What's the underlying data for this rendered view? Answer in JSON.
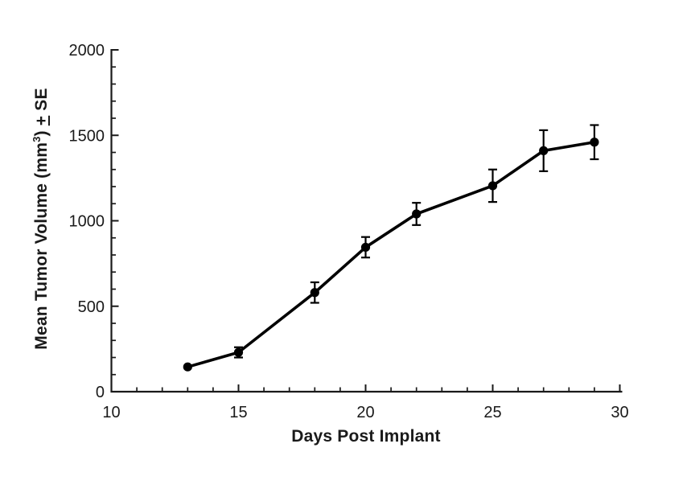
{
  "figure": {
    "background": "#ffffff",
    "axis_color": "#1a1a1a",
    "text_color": "#1a1a1a",
    "series_color": "#000000"
  },
  "chart_data": {
    "type": "line",
    "title": "",
    "xlabel": "Days Post Implant",
    "ylabel": "Mean Tumor Volume (mm³) ± SE",
    "ylabel_parts": {
      "prefix": "Mean Tumor Volume (mm",
      "superscript": "3",
      "mid": ") ",
      "plus_minus": "+",
      "suffix": " SE"
    },
    "x": [
      13,
      15,
      18,
      20,
      22,
      25,
      27,
      29
    ],
    "y": [
      145,
      230,
      580,
      845,
      1040,
      1205,
      1410,
      1460
    ],
    "se": [
      0,
      30,
      60,
      60,
      65,
      95,
      120,
      100
    ],
    "xlim": [
      10,
      30
    ],
    "ylim": [
      0,
      2000
    ],
    "x_major_ticks": [
      10,
      15,
      20,
      25,
      30
    ],
    "x_tick_labels": [
      "10",
      "15",
      "20",
      "25",
      "30"
    ],
    "x_minor_step": 1,
    "y_major_ticks": [
      0,
      500,
      1000,
      1500,
      2000
    ],
    "y_tick_labels": [
      "0",
      "500",
      "1000",
      "1500",
      "2000"
    ],
    "y_minor_step": 100,
    "marker": "circle",
    "error_bars": true,
    "grid": false,
    "legend": null
  }
}
